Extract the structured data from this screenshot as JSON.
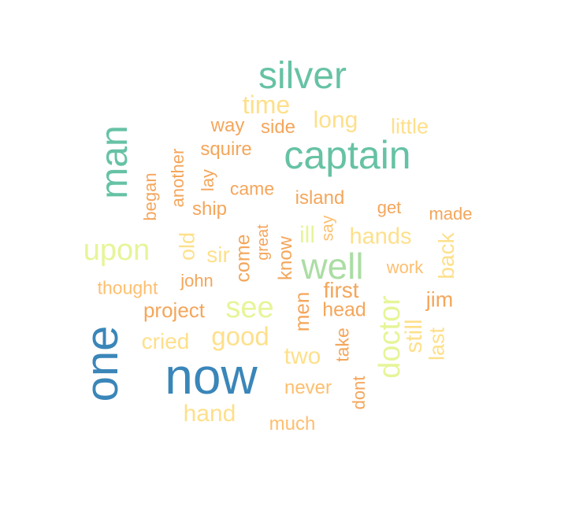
{
  "colors": {
    "c1": "#3a86b9",
    "c2": "#66c2a5",
    "c3": "#abdda4",
    "c4": "#e6f598",
    "c5": "#fee08b",
    "c6": "#fdbf6f",
    "c7": "#f4a65b"
  },
  "words": [
    {
      "text": "silver"
    },
    {
      "text": "time"
    },
    {
      "text": "way"
    },
    {
      "text": "side"
    },
    {
      "text": "long"
    },
    {
      "text": "little"
    },
    {
      "text": "man"
    },
    {
      "text": "captain"
    },
    {
      "text": "squire"
    },
    {
      "text": "another"
    },
    {
      "text": "began"
    },
    {
      "text": "lay"
    },
    {
      "text": "came"
    },
    {
      "text": "island"
    },
    {
      "text": "get"
    },
    {
      "text": "made"
    },
    {
      "text": "ship"
    },
    {
      "text": "great"
    },
    {
      "text": "say"
    },
    {
      "text": "ill"
    },
    {
      "text": "hands"
    },
    {
      "text": "upon"
    },
    {
      "text": "old"
    },
    {
      "text": "sir"
    },
    {
      "text": "come"
    },
    {
      "text": "know"
    },
    {
      "text": "well"
    },
    {
      "text": "back"
    },
    {
      "text": "work"
    },
    {
      "text": "thought"
    },
    {
      "text": "john"
    },
    {
      "text": "first"
    },
    {
      "text": "jim"
    },
    {
      "text": "see"
    },
    {
      "text": "men"
    },
    {
      "text": "doctor"
    },
    {
      "text": "project"
    },
    {
      "text": "head"
    },
    {
      "text": "one"
    },
    {
      "text": "good"
    },
    {
      "text": "cried"
    },
    {
      "text": "take"
    },
    {
      "text": "still"
    },
    {
      "text": "last"
    },
    {
      "text": "two"
    },
    {
      "text": "now"
    },
    {
      "text": "never"
    },
    {
      "text": "dont"
    },
    {
      "text": "hand"
    },
    {
      "text": "much"
    }
  ]
}
